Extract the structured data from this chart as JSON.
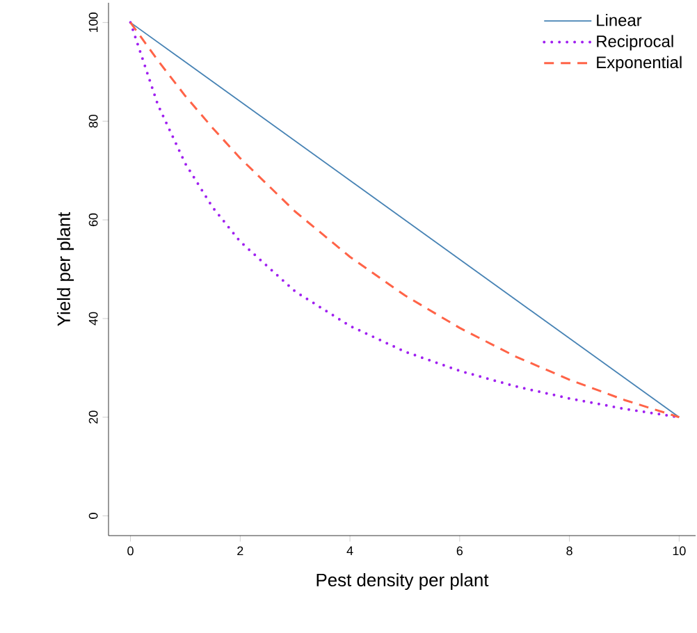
{
  "chart_data": {
    "type": "line",
    "xlabel": "Pest density per plant",
    "ylabel": "Yield per plant",
    "xlim": [
      -0.4,
      10.3
    ],
    "ylim": [
      -4,
      104
    ],
    "xticks": [
      0,
      2,
      4,
      6,
      8,
      10
    ],
    "yticks": [
      0,
      20,
      40,
      60,
      80,
      100
    ],
    "grid": false,
    "legend": "top right",
    "series": [
      {
        "name": "Linear",
        "color": "#4682b4",
        "line_style": "solid",
        "x": [
          0,
          10
        ],
        "values": [
          100,
          20
        ]
      },
      {
        "name": "Reciprocal",
        "color": "#a020f0",
        "line_style": "dotted",
        "x": [
          0,
          0.5,
          1,
          1.5,
          2,
          3,
          4,
          5,
          6,
          7,
          8,
          9,
          10
        ],
        "values": [
          100,
          83.3,
          71.4,
          62.5,
          55.6,
          45.5,
          38.5,
          33.3,
          29.4,
          26.3,
          23.8,
          21.7,
          20
        ]
      },
      {
        "name": "Exponential",
        "color": "#ff6347",
        "line_style": "dashed",
        "x": [
          0,
          0.5,
          1,
          1.5,
          2,
          3,
          4,
          5,
          6,
          7,
          8,
          9,
          10
        ],
        "values": [
          100,
          92.3,
          85.1,
          78.6,
          72.5,
          61.7,
          52.5,
          44.7,
          38.1,
          32.4,
          27.6,
          23.5,
          20
        ]
      }
    ]
  }
}
